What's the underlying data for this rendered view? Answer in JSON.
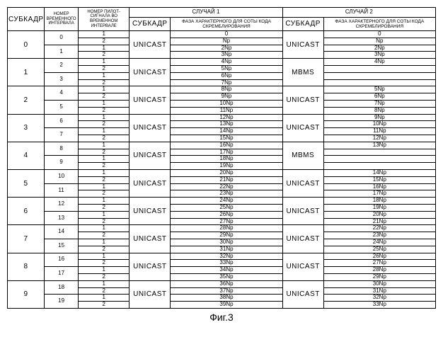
{
  "headers": {
    "subframe": "СУБКАДР",
    "slot": "НОМЕР ВРЕМЕННОГО ИНТЕРВАЛА",
    "pilot": "НОМЕР ПИЛОТ-СИГНАЛА ВО ВРЕМЕННОМ ИНТЕРВАЛЕ",
    "case1": "СЛУЧАЙ 1",
    "case2": "СЛУЧАЙ 2",
    "phase": "ФАЗА ХАРАКТЕРНОГО ДЛЯ СОТЫ КОДА СКРЕМБЛИРОВАНИЯ"
  },
  "modes": {
    "unicast": "UNICAST",
    "mbms": "MBMS"
  },
  "figcaption": "Фиг.3",
  "subframes": [
    {
      "idx": "0",
      "slots": [
        "0",
        "1"
      ],
      "case1": "UNICAST",
      "case2": "UNICAST",
      "ph1": [
        "0",
        "Np",
        "2Np",
        "3Np"
      ],
      "ph2": [
        "0",
        "Np",
        "2Np",
        "3Np"
      ]
    },
    {
      "idx": "1",
      "slots": [
        "2",
        "3"
      ],
      "case1": "UNICAST",
      "case2": "MBMS",
      "ph1": [
        "4Np",
        "5Np",
        "6Np",
        "7Np"
      ],
      "ph2": [
        "4Np",
        "",
        "",
        ""
      ]
    },
    {
      "idx": "2",
      "slots": [
        "4",
        "5"
      ],
      "case1": "UNICAST",
      "case2": "UNICAST",
      "ph1": [
        "8Np",
        "9Np",
        "10Np",
        "11Np"
      ],
      "ph2": [
        "5Np",
        "6Np",
        "7Np",
        "8Np"
      ]
    },
    {
      "idx": "3",
      "slots": [
        "6",
        "7"
      ],
      "case1": "UNICAST",
      "case2": "UNICAST",
      "ph1": [
        "12Np",
        "13Np",
        "14Np",
        "15Np"
      ],
      "ph2": [
        "9Np",
        "10Np",
        "11Np",
        "12Np"
      ]
    },
    {
      "idx": "4",
      "slots": [
        "8",
        "9"
      ],
      "case1": "UNICAST",
      "case2": "MBMS",
      "ph1": [
        "16Np",
        "17Np",
        "18Np",
        "19Np"
      ],
      "ph2": [
        "13Np",
        "",
        "",
        ""
      ]
    },
    {
      "idx": "5",
      "slots": [
        "10",
        "11"
      ],
      "case1": "UNICAST",
      "case2": "UNICAST",
      "ph1": [
        "20Np",
        "21Np",
        "22Np",
        "23Np"
      ],
      "ph2": [
        "14Np",
        "15Np",
        "16Np",
        "17Np"
      ]
    },
    {
      "idx": "6",
      "slots": [
        "12",
        "13"
      ],
      "case1": "UNICAST",
      "case2": "UNICAST",
      "ph1": [
        "24Np",
        "25Np",
        "26Np",
        "27Np"
      ],
      "ph2": [
        "18Np",
        "19Np",
        "20Np",
        "21Np"
      ]
    },
    {
      "idx": "7",
      "slots": [
        "14",
        "15"
      ],
      "case1": "UNICAST",
      "case2": "UNICAST",
      "ph1": [
        "28Np",
        "29Np",
        "30Np",
        "31Np"
      ],
      "ph2": [
        "22Np",
        "23Np",
        "24Np",
        "25Np"
      ]
    },
    {
      "idx": "8",
      "slots": [
        "16",
        "17"
      ],
      "case1": "UNICAST",
      "case2": "UNICAST",
      "ph1": [
        "32Np",
        "33Np",
        "34Np",
        "35Np"
      ],
      "ph2": [
        "26Np",
        "27Np",
        "28Np",
        "29Np"
      ]
    },
    {
      "idx": "9",
      "slots": [
        "18",
        "19"
      ],
      "case1": "UNICAST",
      "case2": "UNICAST",
      "ph1": [
        "36Np",
        "37Np",
        "38Np",
        "39Np"
      ],
      "ph2": [
        "30Np",
        "31Np",
        "32Np",
        "33Np"
      ]
    }
  ],
  "pilot_per_slot": [
    "1",
    "2"
  ]
}
